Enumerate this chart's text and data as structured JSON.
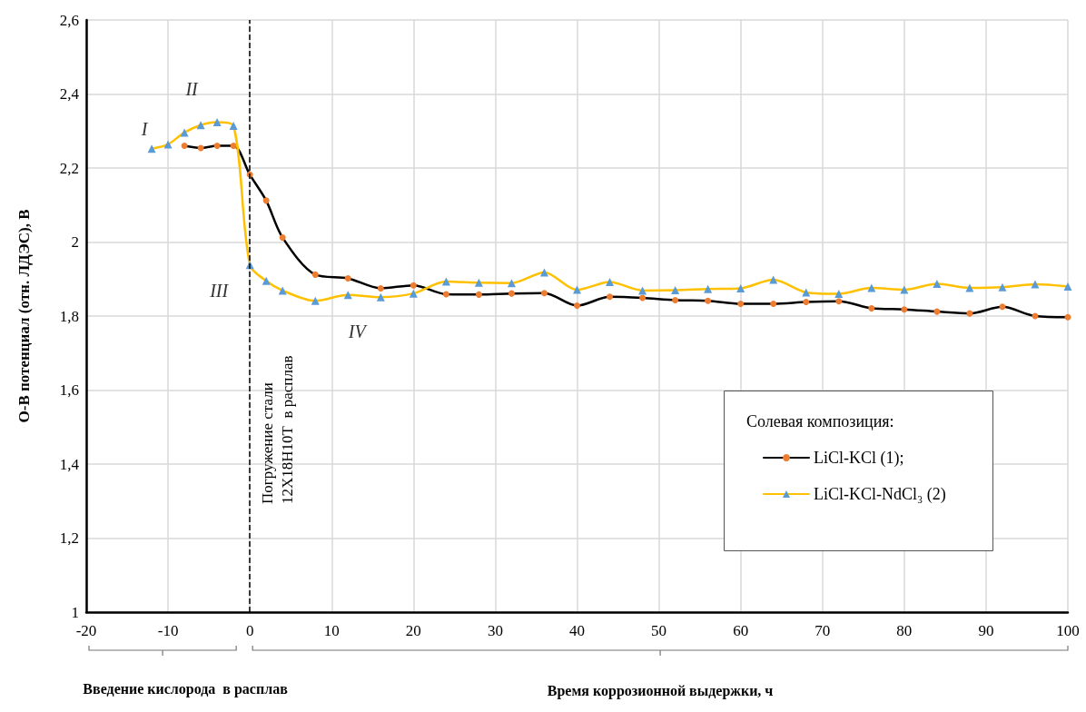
{
  "chart_data": {
    "type": "line",
    "xlabel": "Время коррозионной выдержки, ч",
    "ylabel": "О-В потенциал (отн. ЛДЭС), В",
    "legend_title": "Солевая композиция:",
    "xlim": [
      -20,
      100
    ],
    "xticks": [
      -20,
      -10,
      0,
      10,
      20,
      30,
      40,
      50,
      60,
      70,
      80,
      90,
      100
    ],
    "ylim": [
      1,
      2.6
    ],
    "yticks": [
      {
        "value": 1,
        "label": "1"
      },
      {
        "value": 1.2,
        "label": "1,2"
      },
      {
        "value": 1.4,
        "label": "1,4"
      },
      {
        "value": 1.6,
        "label": "1,6"
      },
      {
        "value": 1.8,
        "label": "1,8"
      },
      {
        "value": 2,
        "label": "2"
      },
      {
        "value": 2.2,
        "label": "2,2"
      },
      {
        "value": 2.4,
        "label": "2,4"
      },
      {
        "value": 2.6,
        "label": "2,6"
      }
    ],
    "grid": true,
    "legend": "right",
    "line_style": "solid",
    "series": [
      {
        "name": "LiCl-KCl (1);",
        "color": "#000000",
        "marker": "circle",
        "x": [
          -8,
          -6,
          -4,
          -2,
          0,
          2,
          4,
          8,
          12,
          16,
          20,
          24,
          28,
          32,
          36,
          40,
          44,
          48,
          52,
          56,
          60,
          64,
          68,
          72,
          76,
          80,
          84,
          88,
          92,
          96,
          100
        ],
        "values": [
          2.26,
          2.254,
          2.26,
          2.26,
          2.182,
          2.112,
          2.012,
          1.912,
          1.902,
          1.875,
          1.883,
          1.859,
          1.858,
          1.861,
          1.862,
          1.828,
          1.852,
          1.849,
          1.843,
          1.841,
          1.833,
          1.833,
          1.838,
          1.84,
          1.821,
          1.818,
          1.812,
          1.807,
          1.825,
          1.8,
          1.797
        ]
      },
      {
        "name": "LiCl-KCl-NdCl₃ (2)",
        "color": "#ffc000",
        "marker": "triangle",
        "x": [
          -12,
          -10,
          -8,
          -6,
          -4,
          -2,
          0,
          2,
          4,
          8,
          12,
          16,
          20,
          24,
          28,
          32,
          36,
          40,
          44,
          48,
          52,
          56,
          60,
          64,
          68,
          72,
          76,
          80,
          84,
          88,
          92,
          96,
          100
        ],
        "values": [
          2.252,
          2.264,
          2.296,
          2.316,
          2.324,
          2.314,
          1.938,
          1.895,
          1.869,
          1.841,
          1.857,
          1.851,
          1.861,
          1.893,
          1.89,
          1.889,
          1.918,
          1.871,
          1.892,
          1.869,
          1.87,
          1.873,
          1.875,
          1.898,
          1.864,
          1.86,
          1.876,
          1.871,
          1.887,
          1.876,
          1.878,
          1.886,
          1.88
        ]
      }
    ],
    "ref_lines": [
      {
        "axis": "x",
        "value": 0,
        "label": "Погружение стали\n12Х18Н10Т  в расплав",
        "color": "#000000",
        "line_style": "dashed"
      }
    ],
    "annotations": [
      {
        "text": "I",
        "x": -12,
        "y": 2.252
      },
      {
        "text": "II",
        "x": -6,
        "y": 2.316
      },
      {
        "text": "III",
        "x": 0,
        "y": 1.938
      },
      {
        "text": "IV",
        "x": 12,
        "y": 1.857
      },
      "Введение кислорода  в расплав"
    ]
  }
}
